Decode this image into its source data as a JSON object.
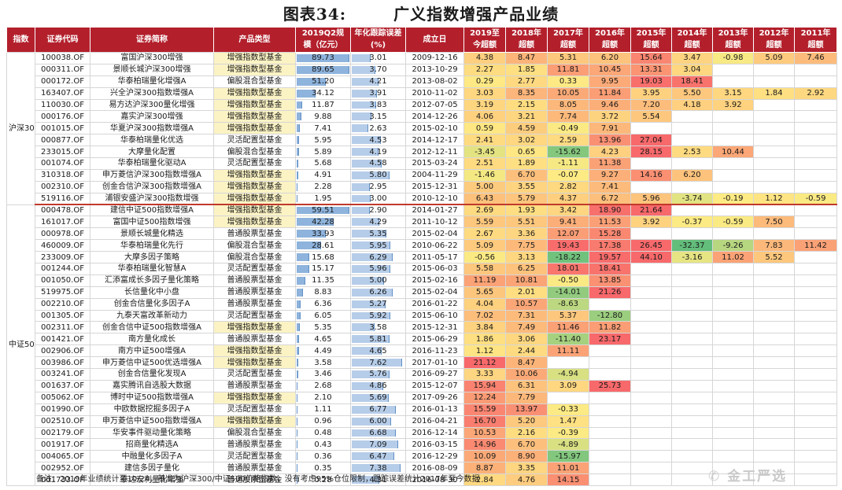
{
  "title": {
    "label": "图表34:",
    "text": "广义指数增强产品业绩"
  },
  "headers": [
    {
      "l1": "指数",
      "l2": ""
    },
    {
      "l1": "证券代码",
      "l2": ""
    },
    {
      "l1": "证券简称",
      "l2": ""
    },
    {
      "l1": "产品类型",
      "l2": ""
    },
    {
      "l1": "2019Q2规",
      "l2": "模（亿元）"
    },
    {
      "l1": "年化跟踪误差",
      "l2": "(%)"
    },
    {
      "l1": "成立日",
      "l2": ""
    },
    {
      "l1": "2019至",
      "l2": "今超额"
    },
    {
      "l1": "2018年",
      "l2": "超额"
    },
    {
      "l1": "2017年",
      "l2": "超额"
    },
    {
      "l1": "2016年",
      "l2": "超额"
    },
    {
      "l1": "2015年",
      "l2": "超额"
    },
    {
      "l1": "2014年",
      "l2": "超额"
    },
    {
      "l1": "2013年",
      "l2": "超额"
    },
    {
      "l1": "2012年",
      "l2": "超额"
    },
    {
      "l1": "2011年",
      "l2": "超额"
    }
  ],
  "groups": [
    {
      "name": "沪深300",
      "rows": [
        [
          "100038.OF",
          "富国沪深300增强",
          "增强指数型基金",
          "89.73",
          "3.01",
          "2009-12-16",
          "4.38",
          "8.47",
          "5.31",
          "6.20",
          "15.64",
          "3.47",
          "-0.98",
          "5.09",
          "7.46"
        ],
        [
          "000311.OF",
          "景顺长城沪深300增强",
          "增强指数型基金",
          "89.65",
          "3.70",
          "2013-10-29",
          "2.27",
          "1.85",
          "11.81",
          "10.45",
          "13.31",
          "3.04",
          "",
          "",
          ""
        ],
        [
          "000172.OF",
          "华泰柏瑞量化增强A",
          "偏股混合型基金",
          "51.20",
          "4.21",
          "2013-08-02",
          "0.29",
          "2.77",
          "0.33",
          "9.95",
          "19.03",
          "18.41",
          "",
          "",
          ""
        ],
        [
          "163407.OF",
          "兴全沪深300指数增强A",
          "增强指数型基金",
          "34.12",
          "3.91",
          "2010-11-02",
          "3.03",
          "8.35",
          "10.05",
          "11.84",
          "3.95",
          "5.50",
          "3.15",
          "1.84",
          "2.92"
        ],
        [
          "110030.OF",
          "易方达沪深300量化增强",
          "增强指数型基金",
          "11.87",
          "3.83",
          "2012-07-05",
          "3.19",
          "2.15",
          "8.05",
          "9.46",
          "7.20",
          "4.18",
          "3.92",
          "",
          ""
        ],
        [
          "000176.OF",
          "嘉实沪深300增强",
          "增强指数型基金",
          "9.88",
          "3.15",
          "2014-12-26",
          "4.06",
          "3.21",
          "7.74",
          "3.72",
          "5.54",
          "",
          "",
          "",
          ""
        ],
        [
          "001015.OF",
          "华夏沪深300指数增强A",
          "增强指数型基金",
          "7.41",
          "2.63",
          "2015-02-10",
          "0.59",
          "4.59",
          "-0.49",
          "7.91",
          "",
          "",
          "",
          "",
          ""
        ],
        [
          "000877.OF",
          "华泰柏瑞量化优选",
          "灵活配置型基金",
          "5.95",
          "4.53",
          "2014-12-17",
          "2.41",
          "3.02",
          "2.59",
          "13.96",
          "27.04",
          "",
          "",
          "",
          ""
        ],
        [
          "233015.OF",
          "大摩量化配置",
          "偏股混合型基金",
          "5.89",
          "4.19",
          "2012-12-11",
          "-3.45",
          "0.65",
          "-15.62",
          "4.23",
          "28.15",
          "2.53",
          "10.44",
          "",
          ""
        ],
        [
          "001074.OF",
          "华泰柏瑞量化驱动A",
          "灵活配置型基金",
          "5.68",
          "4.58",
          "2015-03-24",
          "2.51",
          "1.89",
          "-1.11",
          "11.38",
          "",
          "",
          "",
          "",
          ""
        ],
        [
          "310318.OF",
          "申万菱信沪深300指数增强A",
          "增强指数型基金",
          "4.91",
          "5.80",
          "2004-11-29",
          "-1.46",
          "6.70",
          "-0.07",
          "9.27",
          "14.16",
          "6.20",
          "",
          "",
          ""
        ],
        [
          "002310.OF",
          "创金合信沪深300指数增强A",
          "增强指数型基金",
          "2.28",
          "2.95",
          "2015-12-31",
          "5.00",
          "3.55",
          "2.82",
          "7.41",
          "",
          "",
          "",
          "",
          ""
        ],
        [
          "519116.OF",
          "浦银安盛沪深300指数增强",
          "增强指数型基金",
          "1.95",
          "3.00",
          "2010-12-10",
          "6.43",
          "5.79",
          "4.37",
          "6.72",
          "5.96",
          "-3.74",
          "-0.19",
          "1.12",
          "-0.59"
        ]
      ]
    },
    {
      "name": "中证500",
      "rows": [
        [
          "000478.OF",
          "建信中证500指数增强A",
          "增强指数型基金",
          "59.51",
          "2.90",
          "2014-01-27",
          "2.69",
          "1.93",
          "3.42",
          "18.90",
          "21.64",
          "",
          "",
          "",
          ""
        ],
        [
          "161017.OF",
          "富国中证500指数增强",
          "增强指数型基金",
          "42.28",
          "4.29",
          "2011-10-12",
          "5.59",
          "5.51",
          "9.41",
          "11.53",
          "3.92",
          "-0.37",
          "-0.59",
          "7.50",
          ""
        ],
        [
          "000978.OF",
          "景顺长城量化精选",
          "普通股票型基金",
          "33.93",
          "5.35",
          "2015-02-04",
          "2.67",
          "3.36",
          "12.07",
          "15.28",
          "",
          "",
          "",
          "",
          ""
        ],
        [
          "460009.OF",
          "华泰柏瑞量化先行",
          "偏股混合型基金",
          "28.61",
          "5.95",
          "2010-06-22",
          "5.09",
          "7.75",
          "19.43",
          "17.38",
          "26.45",
          "-32.37",
          "-9.26",
          "7.83",
          "11.42"
        ],
        [
          "233009.OF",
          "大摩多因子策略",
          "偏股混合型基金",
          "15.68",
          "6.29",
          "2011-05-17",
          "-0.56",
          "3.13",
          "-18.22",
          "19.57",
          "44.10",
          "-3.16",
          "11.02",
          "5.52",
          ""
        ],
        [
          "001244.OF",
          "华泰柏瑞量化智慧A",
          "灵活配置型基金",
          "15.17",
          "5.96",
          "2015-06-03",
          "5.58",
          "6.25",
          "18.01",
          "18.41",
          "",
          "",
          "",
          "",
          ""
        ],
        [
          "001050.OF",
          "汇添富成长多因子量化策略",
          "普通股票型基金",
          "11.35",
          "5.00",
          "2015-02-16",
          "11.19",
          "10.81",
          "-0.50",
          "13.85",
          "",
          "",
          "",
          "",
          ""
        ],
        [
          "519975.OF",
          "长信量化中小盘",
          "普通股票型基金",
          "8.83",
          "6.26",
          "2015-02-04",
          "5.65",
          "2.01",
          "-14.01",
          "21.26",
          "",
          "",
          "",
          "",
          ""
        ],
        [
          "002210.OF",
          "创金合信量化多因子A",
          "普通股票型基金",
          "6.36",
          "5.27",
          "2016-01-22",
          "4.04",
          "10.57",
          "-8.63",
          "",
          "",
          "",
          "",
          "",
          ""
        ],
        [
          "001305.OF",
          "九泰天富改革新动力",
          "灵活配置型基金",
          "6.05",
          "5.92",
          "2015-06-10",
          "7.02",
          "7.31",
          "5.37",
          "-12.80",
          "",
          "",
          "",
          "",
          ""
        ],
        [
          "002311.OF",
          "创金合信中证500指数增强A",
          "增强指数型基金",
          "5.35",
          "3.58",
          "2015-12-31",
          "3.84",
          "7.49",
          "11.46",
          "11.82",
          "",
          "",
          "",
          "",
          ""
        ],
        [
          "001421.OF",
          "南方量化成长",
          "普通股票型基金",
          "4.65",
          "5.81",
          "2015-06-29",
          "1.86",
          "3.06",
          "-11.40",
          "23.17",
          "",
          "",
          "",
          "",
          ""
        ],
        [
          "002906.OF",
          "南方中证500增强A",
          "增强指数型基金",
          "4.49",
          "4.65",
          "2016-11-23",
          "1.12",
          "2.44",
          "11.11",
          "",
          "",
          "",
          "",
          "",
          ""
        ],
        [
          "003986.OF",
          "申万菱信中证500优选增强A",
          "增强指数型基金",
          "3.58",
          "7.62",
          "2017-01-10",
          "21.12",
          "8.47",
          "",
          "",
          "",
          "",
          "",
          "",
          ""
        ],
        [
          "003241.OF",
          "创金合信量化发现A",
          "灵活配置型基金",
          "3.46",
          "5.76",
          "2016-09-27",
          "3.33",
          "10.06",
          "-4.94",
          "",
          "",
          "",
          "",
          "",
          ""
        ],
        [
          "001637.OF",
          "嘉实腾讯自选股大数据",
          "普通股票型基金",
          "2.68",
          "4.86",
          "2015-12-07",
          "15.94",
          "6.31",
          "3.09",
          "25.73",
          "",
          "",
          "",
          "",
          ""
        ],
        [
          "005062.OF",
          "博时中证500指数增强A",
          "增强指数型基金",
          "2.10",
          "5.69",
          "2017-09-26",
          "12.24",
          "7.79",
          "",
          "",
          "",
          "",
          "",
          "",
          ""
        ],
        [
          "001990.OF",
          "中欧数据挖掘多因子A",
          "灵活配置型基金",
          "1.11",
          "6.77",
          "2016-01-13",
          "15.59",
          "13.97",
          "-0.33",
          "",
          "",
          "",
          "",
          "",
          ""
        ],
        [
          "002510.OF",
          "申万菱信中证500指数增强A",
          "增强指数型基金",
          "0.96",
          "6.00",
          "2016-04-21",
          "16.70",
          "5.20",
          "1.47",
          "",
          "",
          "",
          "",
          "",
          ""
        ],
        [
          "002179.OF",
          "华安事件驱动量化策略",
          "偏股混合型基金",
          "0.48",
          "6.68",
          "2016-12-14",
          "10.53",
          "2.16",
          "-0.39",
          "",
          "",
          "",
          "",
          "",
          ""
        ],
        [
          "001917.OF",
          "招商量化精选A",
          "普通股票型基金",
          "0.43",
          "7.09",
          "2016-03-15",
          "14.96",
          "6.70",
          "-4.89",
          "",
          "",
          "",
          "",
          "",
          ""
        ],
        [
          "004065.OF",
          "中融量化多因子A",
          "灵活配置型基金",
          "0.36",
          "6.47",
          "2016-12-29",
          "10.09",
          "8.90",
          "-15.97",
          "",
          "",
          "",
          "",
          "",
          ""
        ],
        [
          "002952.OF",
          "建信多因子量化",
          "普通股票型基金",
          "0.35",
          "7.38",
          "2016-08-09",
          "8.87",
          "3.35",
          "11.01",
          "",
          "",
          "",
          "",
          "",
          ""
        ],
        [
          "001733.OF",
          "泰达宏利量化增强",
          "普通股票型基金",
          "0.28",
          "4.31",
          "2016-08-30",
          "2.84",
          "4.76",
          "14.15",
          "",
          "",
          "",
          "",
          "",
          ""
        ]
      ]
    }
  ],
  "note": "备注：2019年业绩统计至10/24，基准为沪深300/中证500价格指数，没有考虑95%仓位限制，跟踪误差统计2017年至今数据",
  "watermark": "金工严选",
  "colors": {
    "header_bg": "#b3202c",
    "enhanced_type_bg": "#fbf3c4",
    "scale_bar": "#8eb3dc",
    "tracking_bar": "#b6cde9",
    "excess_low": "#f8696b",
    "excess_mid": "#ffeb84",
    "excess_high": "#63be7b",
    "divider": "#c0392b"
  },
  "icons": {
    "watermark_icon": "wechat-icon"
  }
}
